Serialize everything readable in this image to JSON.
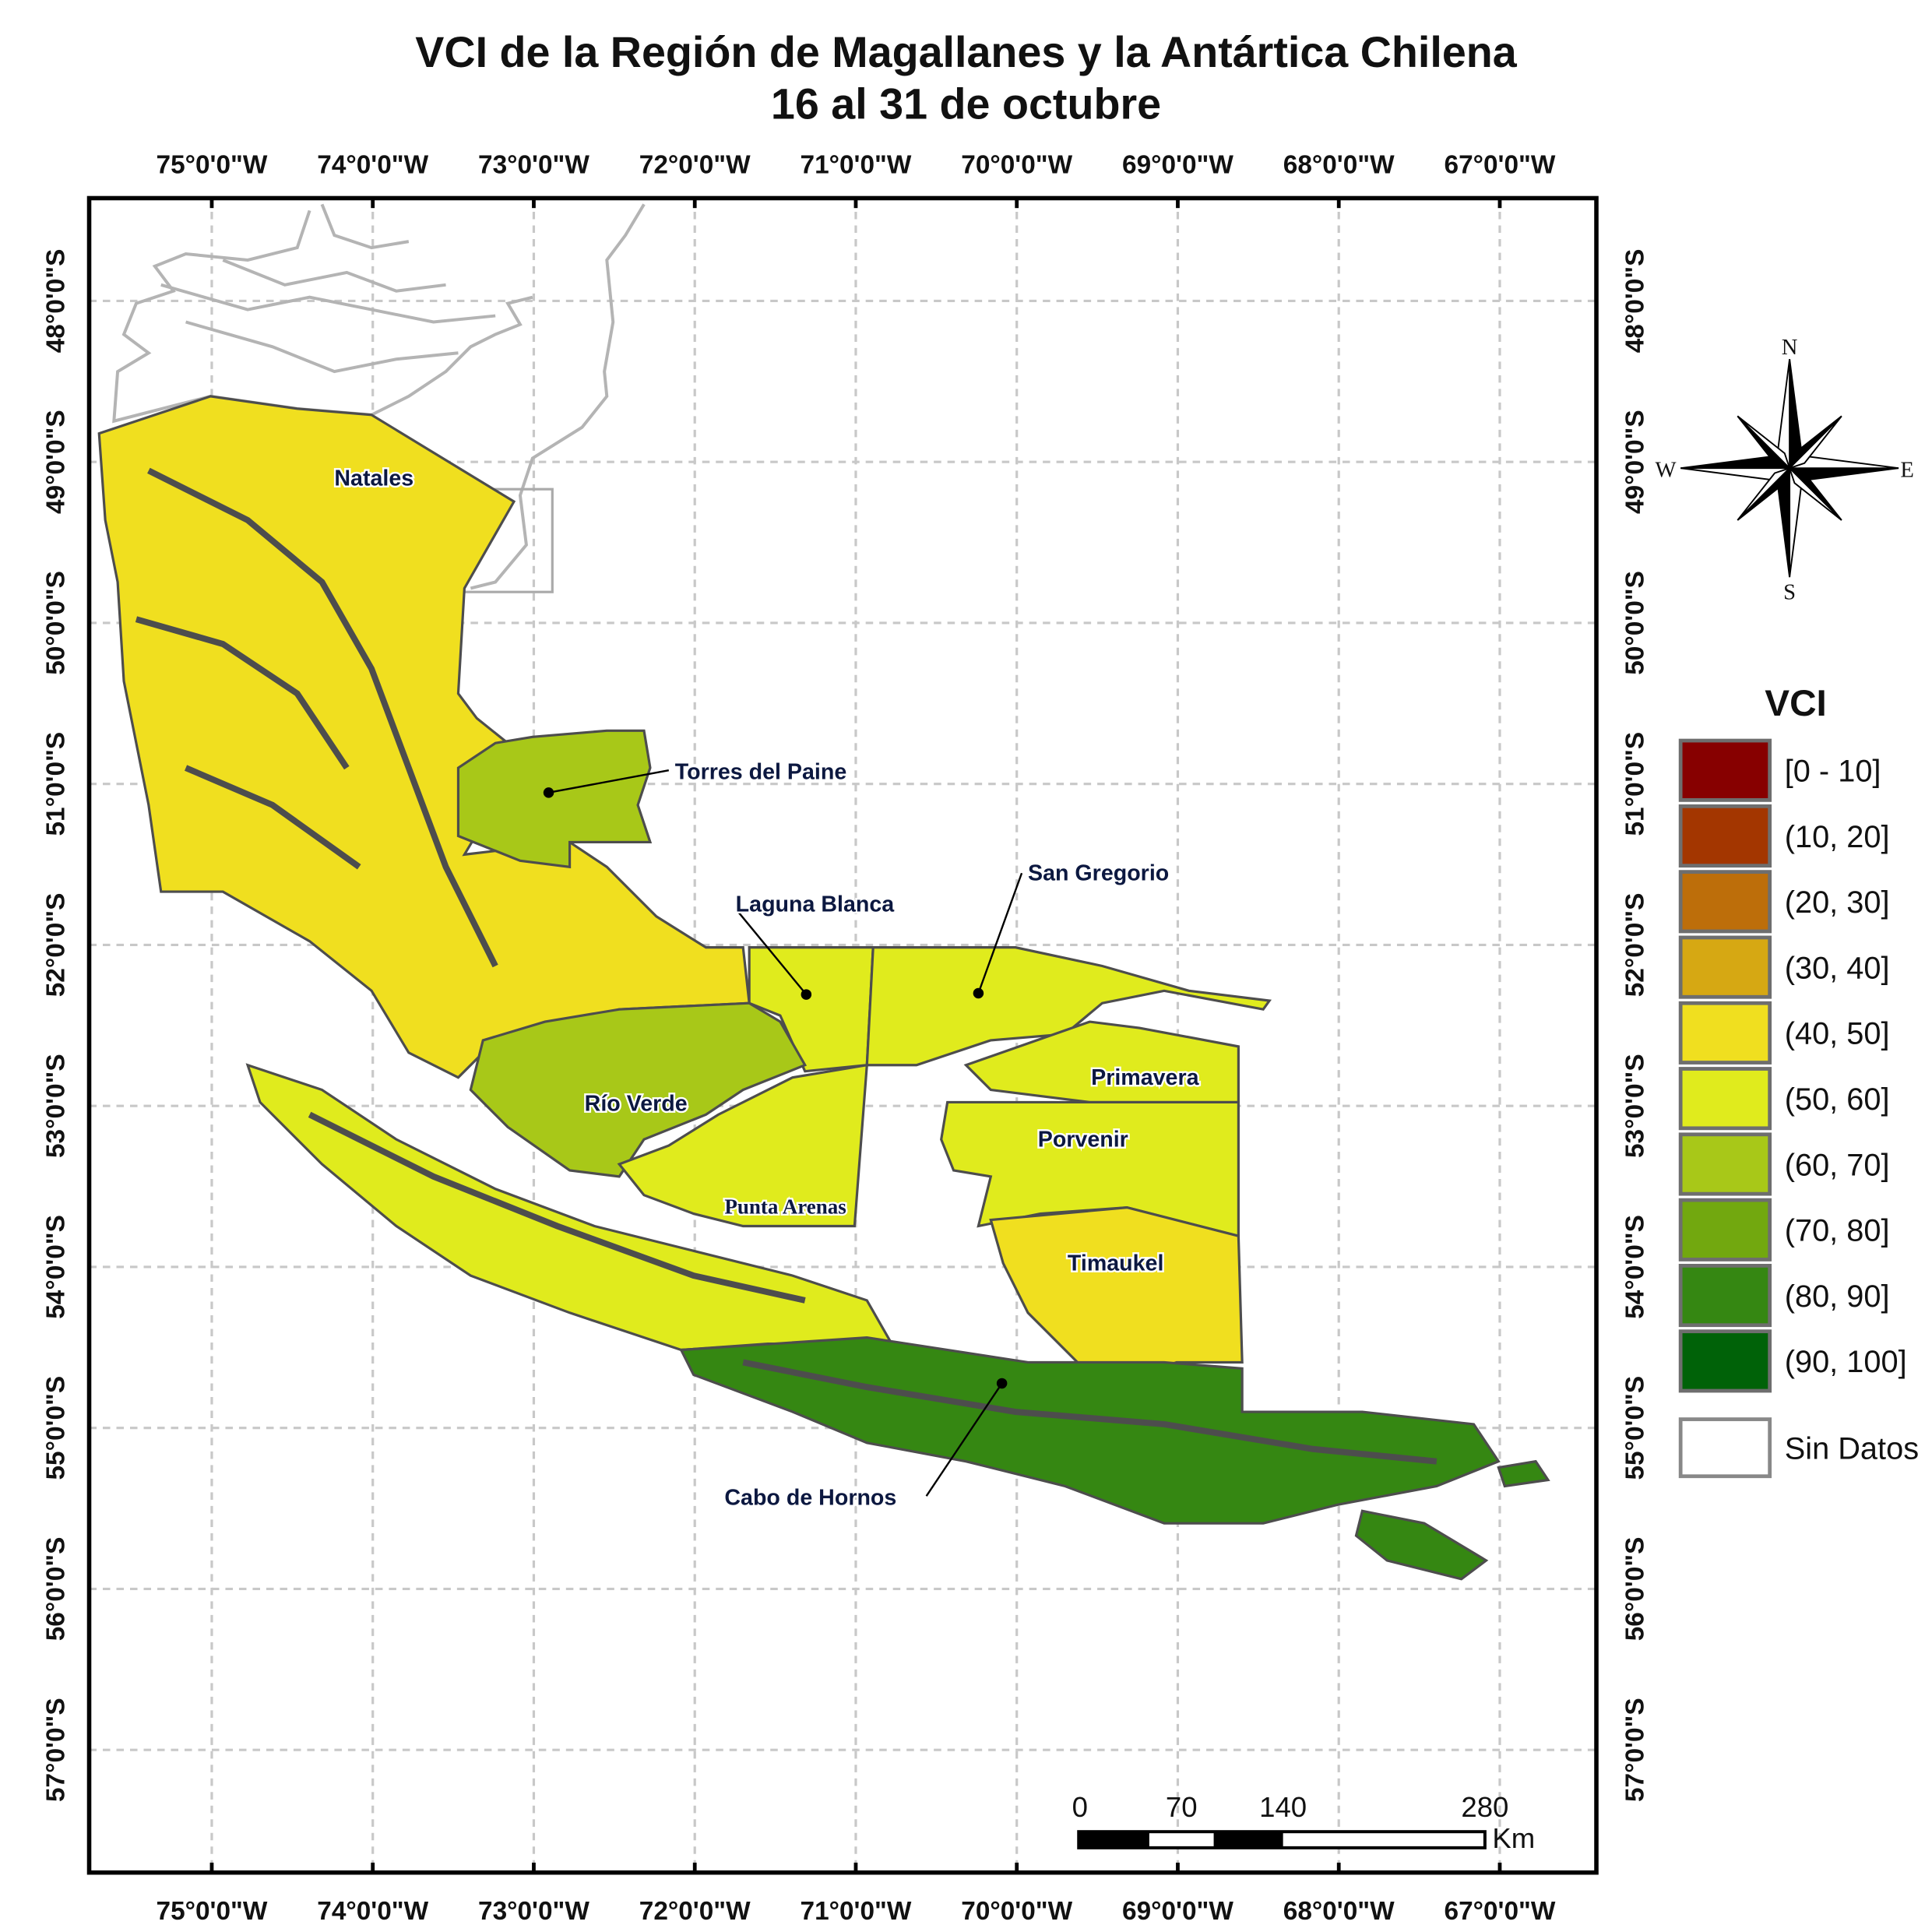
{
  "title": {
    "line1": "VCI de la Región de Magallanes y la Antártica Chilena",
    "line2": "16 al 31 de octubre"
  },
  "longitude_labels": [
    "75°0'0\"W",
    "74°0'0\"W",
    "73°0'0\"W",
    "72°0'0\"W",
    "71°0'0\"W",
    "70°0'0\"W",
    "69°0'0\"W",
    "68°0'0\"W",
    "67°0'0\"W"
  ],
  "latitude_labels": [
    "48°0'0\"S",
    "49°0'0\"S",
    "50°0'0\"S",
    "51°0'0\"S",
    "52°0'0\"S",
    "53°0'0\"S",
    "54°0'0\"S",
    "55°0'0\"S",
    "56°0'0\"S",
    "57°0'0\"S"
  ],
  "regions": [
    {
      "name": "Natales",
      "class": "(40, 50]"
    },
    {
      "name": "Torres del Paine",
      "class": "(60, 70]"
    },
    {
      "name": "Laguna Blanca",
      "class": "(50, 60]"
    },
    {
      "name": "San Gregorio",
      "class": "(50, 60]"
    },
    {
      "name": "Río Verde",
      "class": "(60, 70]"
    },
    {
      "name": "Punta Arenas",
      "class": "(50, 60]"
    },
    {
      "name": "Primavera",
      "class": "(50, 60]"
    },
    {
      "name": "Porvenir",
      "class": "(50, 60]"
    },
    {
      "name": "Timaukel",
      "class": "(40, 50]"
    },
    {
      "name": "Cabo de Hornos",
      "class": "(80, 90]"
    }
  ],
  "legend": {
    "title": "VCI",
    "items": [
      {
        "label": "[0 - 10]",
        "color": "#870000"
      },
      {
        "label": "(10, 20]",
        "color": "#a33600"
      },
      {
        "label": "(20, 30]",
        "color": "#bd6e0a"
      },
      {
        "label": "(30, 40]",
        "color": "#d6a813"
      },
      {
        "label": "(40, 50]",
        "color": "#f0df1f"
      },
      {
        "label": "(50, 60]",
        "color": "#e0eb1d"
      },
      {
        "label": "(60, 70]",
        "color": "#a8c818"
      },
      {
        "label": "(70, 80]",
        "color": "#72a80f"
      },
      {
        "label": "(80, 90]",
        "color": "#358712"
      },
      {
        "label": "(90, 100]",
        "color": "#006208"
      }
    ],
    "no_data": {
      "label": "Sin Datos",
      "color": "#ffffff"
    }
  },
  "scale_bar": {
    "labels": [
      "0",
      "70",
      "140",
      "280"
    ],
    "unit": "Km"
  },
  "compass": {
    "n": "N",
    "s": "S",
    "e": "E",
    "w": "W"
  }
}
